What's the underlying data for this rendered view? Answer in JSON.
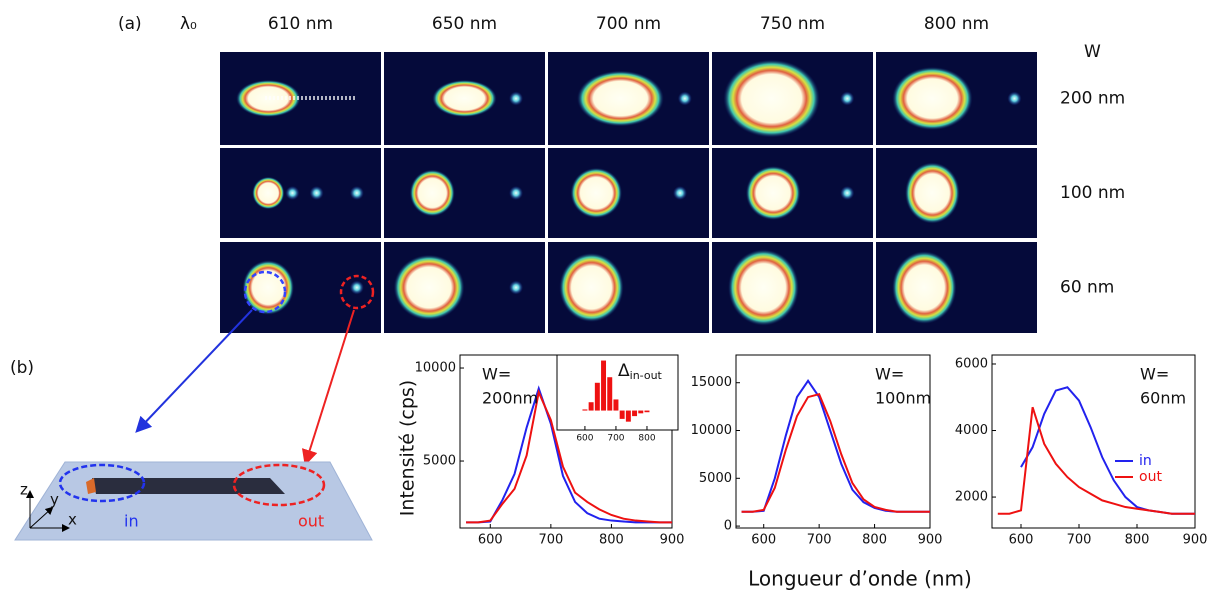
{
  "panel_a": {
    "label": "(a)",
    "lambda_label": "λ₀",
    "wavelengths": [
      "610 nm",
      "650 nm",
      "700 nm",
      "750 nm",
      "800 nm"
    ],
    "width_label": "W",
    "widths": [
      "200 nm",
      "100 nm",
      "60 nm"
    ]
  },
  "panel_b": {
    "label": "(b)",
    "ylabel": "Intensité (cps)",
    "xlabel": "Longueur d’onde (nm)",
    "schematic": {
      "z": "z",
      "y": "y",
      "x": "x",
      "in": "in",
      "out": "out"
    }
  },
  "chart_data": [
    {
      "type": "line",
      "annotation": [
        "W=",
        "200nm"
      ],
      "x": [
        560,
        580,
        600,
        620,
        640,
        660,
        680,
        700,
        720,
        740,
        760,
        780,
        800,
        820,
        840,
        860,
        880,
        900
      ],
      "xlim": [
        550,
        900
      ],
      "xticks": [
        600,
        700,
        800,
        900
      ],
      "ylim": [
        1400,
        10700
      ],
      "yticks": [
        5000,
        10000
      ],
      "series": [
        {
          "name": "in",
          "color": "#2222ee",
          "values": [
            1700,
            1700,
            1750,
            2900,
            4300,
            6800,
            8900,
            7000,
            4200,
            2800,
            2200,
            1900,
            1800,
            1750,
            1700,
            1700,
            1700,
            1700
          ]
        },
        {
          "name": "out",
          "color": "#ee1111",
          "values": [
            1700,
            1700,
            1800,
            2700,
            3500,
            5300,
            8700,
            7200,
            4700,
            3300,
            2800,
            2400,
            2100,
            1900,
            1800,
            1750,
            1700,
            1700
          ]
        }
      ]
    },
    {
      "type": "line",
      "annotation": [
        "W=",
        "100nm"
      ],
      "x": [
        560,
        580,
        600,
        620,
        640,
        660,
        680,
        700,
        720,
        740,
        760,
        780,
        800,
        820,
        840,
        860,
        880,
        900
      ],
      "xlim": [
        550,
        900
      ],
      "xticks": [
        600,
        700,
        800,
        900
      ],
      "ylim": [
        -200,
        17900
      ],
      "yticks": [
        0,
        5000,
        10000,
        15000
      ],
      "series": [
        {
          "name": "in",
          "color": "#2222ee",
          "values": [
            1500,
            1500,
            1600,
            5000,
            9500,
            13500,
            15200,
            13500,
            10000,
            6500,
            3800,
            2500,
            1900,
            1600,
            1500,
            1500,
            1500,
            1500
          ]
        },
        {
          "name": "out",
          "color": "#ee1111",
          "values": [
            1500,
            1500,
            1700,
            4000,
            8000,
            11500,
            13500,
            13800,
            11000,
            7500,
            4500,
            2800,
            2000,
            1700,
            1500,
            1500,
            1500,
            1500
          ]
        }
      ]
    },
    {
      "type": "line",
      "annotation": [
        "W=",
        "60nm"
      ],
      "legend": "right",
      "x": [
        560,
        580,
        600,
        620,
        640,
        660,
        680,
        700,
        720,
        740,
        760,
        780,
        800,
        820,
        840,
        860,
        880,
        900
      ],
      "xlim": [
        550,
        900
      ],
      "xticks": [
        600,
        700,
        800,
        900
      ],
      "ylim": [
        1070,
        6270
      ],
      "yticks": [
        2000,
        4000,
        6000
      ],
      "series": [
        {
          "name": "in",
          "color": "#2222ee",
          "values": [
            null,
            null,
            2900,
            3500,
            4500,
            5200,
            5300,
            4900,
            4100,
            3200,
            2500,
            2000,
            1700,
            1600,
            1550,
            1500,
            1500,
            1500
          ]
        },
        {
          "name": "out",
          "color": "#ee1111",
          "values": [
            1500,
            1500,
            1600,
            4700,
            3600,
            3000,
            2600,
            2300,
            2100,
            1900,
            1800,
            1700,
            1650,
            1600,
            1550,
            1500,
            1500,
            1500
          ]
        }
      ]
    },
    {
      "type": "bar",
      "title": {
        "symbol": "Δ",
        "subscript": "in-out"
      },
      "color": "#ee1111",
      "x": [
        560,
        580,
        600,
        620,
        640,
        660,
        680,
        700,
        720,
        740,
        760,
        780,
        800,
        820,
        840,
        860,
        880
      ],
      "values": [
        0,
        0,
        0.02,
        0.15,
        0.5,
        0.9,
        0.6,
        0.2,
        -0.15,
        -0.2,
        -0.1,
        -0.05,
        -0.03,
        0,
        0,
        0,
        0
      ],
      "xlim": [
        510,
        900
      ],
      "xticks": [
        600,
        700,
        800
      ],
      "ylim": [
        -0.35,
        1
      ]
    }
  ]
}
